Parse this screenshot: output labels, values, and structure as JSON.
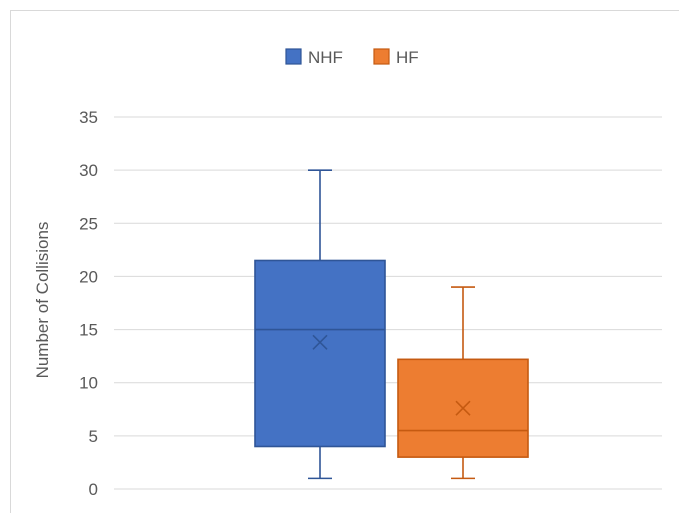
{
  "chart_data": {
    "type": "box",
    "title": "",
    "xlabel": "",
    "ylabel": "Number of Collisions",
    "ylim": [
      0,
      35
    ],
    "yticks": [
      0,
      5,
      10,
      15,
      20,
      25,
      30,
      35
    ],
    "grid": true,
    "legend_position": "top",
    "series": [
      {
        "name": "NHF",
        "color": "#4472C4",
        "border": "#2F5597",
        "min": 1,
        "q1": 4,
        "median": 15,
        "q3": 21.5,
        "max": 30,
        "mean": 13.8
      },
      {
        "name": "HF",
        "color": "#ED7D31",
        "border": "#C55A11",
        "min": 1,
        "q1": 3,
        "median": 5.5,
        "q3": 12.2,
        "max": 19,
        "mean": 7.6
      }
    ]
  }
}
